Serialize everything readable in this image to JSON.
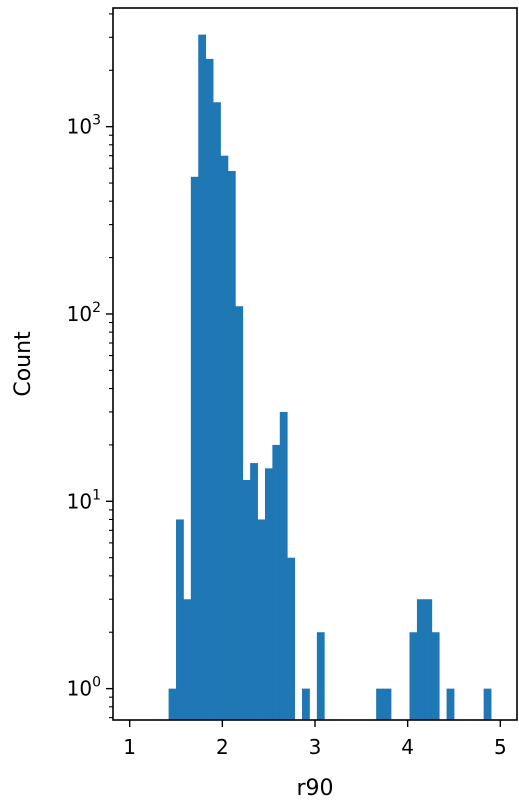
{
  "chart_data": {
    "type": "bar",
    "title": "",
    "xlabel": "r90",
    "ylabel": "Count",
    "y_scale": "log",
    "xlim": [
      0.82,
      5.18
    ],
    "ylim": [
      0.68,
      4300
    ],
    "x_ticks": [
      {
        "value": 1,
        "label": "1"
      },
      {
        "value": 2,
        "label": "2"
      },
      {
        "value": 3,
        "label": "3"
      },
      {
        "value": 4,
        "label": "4"
      },
      {
        "value": 5,
        "label": "5"
      }
    ],
    "y_ticks": [
      {
        "value": 1,
        "base": "10",
        "exp": "0"
      },
      {
        "value": 10,
        "base": "10",
        "exp": "1"
      },
      {
        "value": 100,
        "base": "10",
        "exp": "2"
      },
      {
        "value": 1000,
        "base": "10",
        "exp": "3"
      }
    ],
    "bin_width": 0.08,
    "bins": [
      {
        "x0": 1.42,
        "count": 1
      },
      {
        "x0": 1.5,
        "count": 8
      },
      {
        "x0": 1.58,
        "count": 3
      },
      {
        "x0": 1.66,
        "count": 540
      },
      {
        "x0": 1.74,
        "count": 3100
      },
      {
        "x0": 1.82,
        "count": 2300
      },
      {
        "x0": 1.9,
        "count": 1350
      },
      {
        "x0": 1.98,
        "count": 700
      },
      {
        "x0": 2.06,
        "count": 580
      },
      {
        "x0": 2.14,
        "count": 110
      },
      {
        "x0": 2.22,
        "count": 13
      },
      {
        "x0": 2.3,
        "count": 16
      },
      {
        "x0": 2.38,
        "count": 8
      },
      {
        "x0": 2.46,
        "count": 15
      },
      {
        "x0": 2.54,
        "count": 20
      },
      {
        "x0": 2.62,
        "count": 30
      },
      {
        "x0": 2.7,
        "count": 5
      },
      {
        "x0": 2.86,
        "count": 1
      },
      {
        "x0": 3.02,
        "count": 2
      },
      {
        "x0": 3.66,
        "count": 1
      },
      {
        "x0": 3.74,
        "count": 1
      },
      {
        "x0": 4.02,
        "count": 2
      },
      {
        "x0": 4.1,
        "count": 3
      },
      {
        "x0": 4.18,
        "count": 3
      },
      {
        "x0": 4.26,
        "count": 2
      },
      {
        "x0": 4.42,
        "count": 1
      },
      {
        "x0": 4.82,
        "count": 1
      }
    ],
    "grid": false,
    "bar_color": "#1f77b4"
  }
}
